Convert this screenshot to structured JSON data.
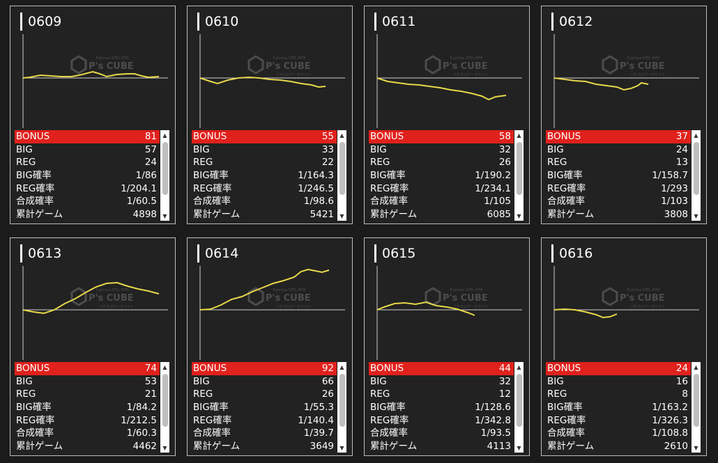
{
  "labels": {
    "bonus": "BONUS",
    "big": "BIG",
    "reg": "REG",
    "big_rate": "BIG確率",
    "reg_rate": "REG確率",
    "combined_rate": "合成確率",
    "total_games": "累計ゲーム"
  },
  "watermark": {
    "brand": "P's CUBE",
    "top_text": "Fujimiya STEL MTR",
    "bottom_text": "パチスロデータサイト"
  },
  "colors": {
    "bonus_row": "#e0211c",
    "graph_line": "#e8d84a",
    "background": "#1b1b1b",
    "card": "#222222"
  },
  "icons": {
    "scroll_up": "triangle-up-icon",
    "scroll_down": "triangle-down-icon"
  },
  "machines": [
    {
      "id": "0609",
      "bonus": "81",
      "big": "57",
      "reg": "24",
      "big_rate": "1/86",
      "reg_rate": "1/204.1",
      "combined_rate": "1/60.5",
      "total_games": "4898"
    },
    {
      "id": "0610",
      "bonus": "55",
      "big": "33",
      "reg": "22",
      "big_rate": "1/164.3",
      "reg_rate": "1/246.5",
      "combined_rate": "1/98.6",
      "total_games": "5421"
    },
    {
      "id": "0611",
      "bonus": "58",
      "big": "32",
      "reg": "26",
      "big_rate": "1/190.2",
      "reg_rate": "1/234.1",
      "combined_rate": "1/105",
      "total_games": "6085"
    },
    {
      "id": "0612",
      "bonus": "37",
      "big": "24",
      "reg": "13",
      "big_rate": "1/158.7",
      "reg_rate": "1/293",
      "combined_rate": "1/103",
      "total_games": "3808"
    },
    {
      "id": "0613",
      "bonus": "74",
      "big": "53",
      "reg": "21",
      "big_rate": "1/84.2",
      "reg_rate": "1/212.5",
      "combined_rate": "1/60.3",
      "total_games": "4462"
    },
    {
      "id": "0614",
      "bonus": "92",
      "big": "66",
      "reg": "26",
      "big_rate": "1/55.3",
      "reg_rate": "1/140.4",
      "combined_rate": "1/39.7",
      "total_games": "3649"
    },
    {
      "id": "0615",
      "bonus": "44",
      "big": "32",
      "reg": "12",
      "big_rate": "1/128.6",
      "reg_rate": "1/342.8",
      "combined_rate": "1/93.5",
      "total_games": "4113"
    },
    {
      "id": "0616",
      "bonus": "24",
      "big": "16",
      "reg": "8",
      "big_rate": "1/163.2",
      "reg_rate": "1/326.3",
      "combined_rate": "1/108.8",
      "total_games": "2610"
    }
  ]
}
